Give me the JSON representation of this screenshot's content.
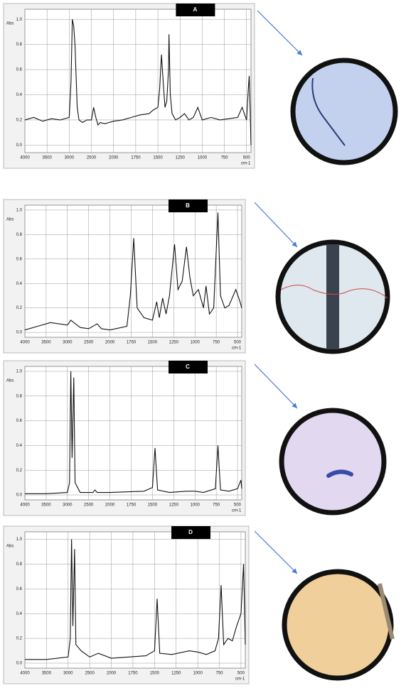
{
  "chart_data": [
    {
      "type": "line",
      "title": "A",
      "y_label": "Abs",
      "x_label": "cm-1",
      "color": "#111111",
      "grid": true,
      "xlim": [
        4000,
        450
      ],
      "ylim": [
        -0.06,
        1.08
      ],
      "xticks": [
        4000,
        3500,
        3000,
        2500,
        2000,
        1750,
        1500,
        1250,
        1000,
        750,
        500
      ],
      "yticks": [
        {
          "value": 0,
          "label": "0.0"
        },
        0.2,
        0.4,
        0.6,
        0.8,
        {
          "value": 1,
          "label": "1.0"
        }
      ],
      "x": [
        4000,
        3800,
        3600,
        3400,
        3200,
        3000,
        2960,
        2930,
        2900,
        2870,
        2850,
        2820,
        2780,
        2700,
        2600,
        2500,
        2450,
        2400,
        2350,
        2300,
        2200,
        2100,
        2000,
        1900,
        1800,
        1700,
        1600,
        1550,
        1500,
        1480,
        1460,
        1440,
        1420,
        1400,
        1380,
        1375,
        1360,
        1340,
        1300,
        1250,
        1200,
        1150,
        1100,
        1050,
        1000,
        900,
        800,
        700,
        600,
        550,
        500,
        480,
        470,
        460,
        450
      ],
      "values": [
        0.2,
        0.22,
        0.19,
        0.21,
        0.2,
        0.22,
        0.5,
        1.0,
        0.95,
        0.8,
        0.6,
        0.3,
        0.2,
        0.18,
        0.2,
        0.2,
        0.3,
        0.22,
        0.16,
        0.18,
        0.17,
        0.18,
        0.19,
        0.2,
        0.22,
        0.24,
        0.25,
        0.28,
        0.3,
        0.45,
        0.72,
        0.5,
        0.3,
        0.35,
        0.6,
        0.88,
        0.4,
        0.25,
        0.2,
        0.22,
        0.25,
        0.2,
        0.22,
        0.3,
        0.2,
        0.22,
        0.2,
        0.21,
        0.22,
        0.3,
        0.2,
        0.45,
        0.55,
        0.3,
        0.0
      ]
    },
    {
      "type": "line",
      "title": "B",
      "y_label": "Abs",
      "x_label": "cm-1",
      "color": "#111111",
      "grid": true,
      "xlim": [
        4000,
        450
      ],
      "ylim": [
        -0.04,
        1.04
      ],
      "xticks": [
        4000,
        3500,
        3000,
        2500,
        2000,
        1750,
        1500,
        1250,
        1000,
        750,
        500
      ],
      "yticks": [
        {
          "value": 0,
          "label": "0.0"
        },
        0.2,
        0.4,
        0.6,
        0.8,
        {
          "value": 1,
          "label": "1.0"
        }
      ],
      "x": [
        4000,
        3700,
        3400,
        3000,
        2920,
        2850,
        2700,
        2500,
        2300,
        2200,
        2000,
        1800,
        1760,
        1720,
        1680,
        1600,
        1500,
        1450,
        1420,
        1380,
        1340,
        1300,
        1240,
        1200,
        1150,
        1100,
        1060,
        1020,
        960,
        900,
        870,
        830,
        780,
        730,
        700,
        650,
        600,
        520,
        470,
        450
      ],
      "values": [
        0.02,
        0.05,
        0.08,
        0.06,
        0.1,
        0.08,
        0.04,
        0.03,
        0.07,
        0.03,
        0.02,
        0.05,
        0.3,
        0.77,
        0.2,
        0.12,
        0.1,
        0.25,
        0.12,
        0.28,
        0.15,
        0.3,
        0.72,
        0.35,
        0.42,
        0.7,
        0.45,
        0.3,
        0.35,
        0.2,
        0.38,
        0.15,
        0.2,
        0.98,
        0.3,
        0.2,
        0.22,
        0.35,
        0.25,
        0.2
      ]
    },
    {
      "type": "line",
      "title": "C",
      "y_label": "Abs",
      "x_label": "cm-1",
      "color": "#111111",
      "grid": true,
      "xlim": [
        4000,
        450
      ],
      "ylim": [
        -0.04,
        1.04
      ],
      "xticks": [
        4000,
        3500,
        3000,
        2500,
        2000,
        1750,
        1500,
        1250,
        1000,
        750,
        500
      ],
      "yticks": [
        {
          "value": 0,
          "label": "0.0"
        },
        0.2,
        0.4,
        0.6,
        0.8,
        {
          "value": 1,
          "label": "1.0"
        }
      ],
      "x": [
        4000,
        3500,
        3000,
        2950,
        2920,
        2890,
        2850,
        2820,
        2700,
        2400,
        2350,
        2300,
        2000,
        1600,
        1500,
        1470,
        1440,
        1300,
        1100,
        1000,
        900,
        760,
        730,
        700,
        600,
        500,
        460,
        450
      ],
      "values": [
        0.01,
        0.01,
        0.02,
        0.1,
        1.0,
        0.3,
        0.95,
        0.1,
        0.02,
        0.02,
        0.04,
        0.02,
        0.02,
        0.03,
        0.06,
        0.38,
        0.04,
        0.02,
        0.03,
        0.03,
        0.02,
        0.05,
        0.4,
        0.04,
        0.03,
        0.05,
        0.12,
        0.05
      ]
    },
    {
      "type": "line",
      "title": "D",
      "y_label": "Abs",
      "x_label": "cm-1",
      "color": "#111111",
      "grid": true,
      "xlim": [
        4000,
        450
      ],
      "ylim": [
        -0.04,
        1.06
      ],
      "xticks": [
        4000,
        3500,
        3000,
        2500,
        2000,
        1750,
        1500,
        1250,
        1000,
        750,
        500
      ],
      "yticks": [
        {
          "value": 0,
          "label": "0.0"
        },
        0.2,
        0.4,
        0.6,
        0.8,
        {
          "value": 1,
          "label": "1.0"
        }
      ],
      "x": [
        4000,
        3500,
        3000,
        2950,
        2920,
        2890,
        2850,
        2820,
        2700,
        2500,
        2300,
        2000,
        1800,
        1600,
        1500,
        1470,
        1440,
        1300,
        1100,
        1000,
        900,
        800,
        760,
        730,
        700,
        650,
        600,
        550,
        500,
        470,
        450
      ],
      "values": [
        0.03,
        0.03,
        0.05,
        0.2,
        1.0,
        0.3,
        0.92,
        0.15,
        0.1,
        0.05,
        0.08,
        0.04,
        0.05,
        0.06,
        0.1,
        0.52,
        0.08,
        0.07,
        0.1,
        0.09,
        0.07,
        0.1,
        0.2,
        0.63,
        0.15,
        0.2,
        0.18,
        0.3,
        0.4,
        0.8,
        0.15
      ]
    }
  ]
}
